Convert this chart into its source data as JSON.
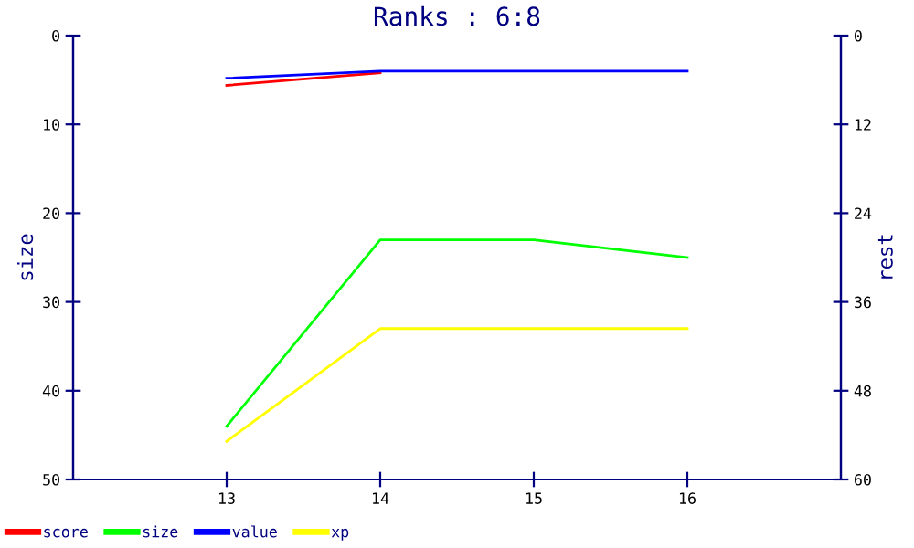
{
  "chart_data": {
    "type": "line",
    "title": "Ranks : 6:8",
    "ylabel": "size",
    "y2label": "rest",
    "x": [
      13,
      14,
      15,
      16
    ],
    "xlim": [
      12,
      17
    ],
    "xticks": [
      13,
      14,
      15,
      16
    ],
    "ylim": [
      50,
      0
    ],
    "yticks": [
      0,
      10,
      20,
      30,
      40,
      50
    ],
    "y2lim": [
      60,
      0
    ],
    "y2ticks": [
      0,
      12,
      24,
      36,
      48,
      60
    ],
    "grid": false,
    "legend": "bottom left",
    "marker": "none",
    "line_style": "solid",
    "series": [
      {
        "name": "score",
        "color": "#ff0000",
        "values": [
          5.6,
          4.2,
          null,
          null
        ]
      },
      {
        "name": "size",
        "color": "#00ff00",
        "values": [
          44,
          23,
          23,
          25
        ]
      },
      {
        "name": "value",
        "color": "#0000ff",
        "values": [
          4.8,
          4.0,
          4.0,
          4.0
        ]
      },
      {
        "name": "xp",
        "color": "#ffff00",
        "values": [
          45.7,
          33,
          33,
          33
        ]
      }
    ]
  }
}
